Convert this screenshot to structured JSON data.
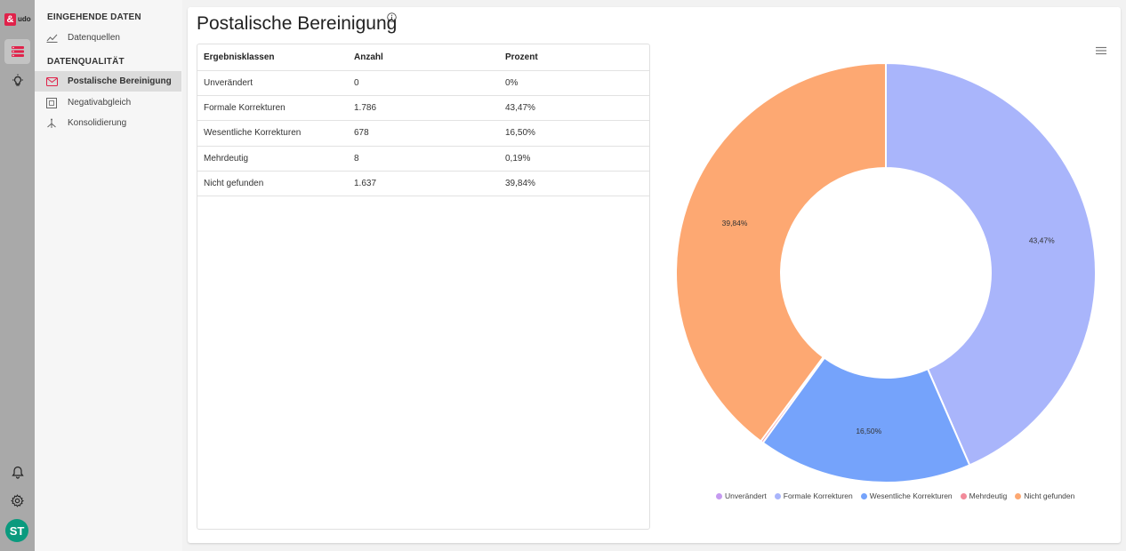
{
  "app": {
    "logo_mark": "&",
    "logo_text": "udo",
    "avatar_initials": "ST"
  },
  "rail": {
    "icons": [
      "database-icon",
      "lightbulb-icon",
      "bell-icon",
      "gear-icon"
    ]
  },
  "nav": {
    "section1_title": "EINGEHENDE DATEN",
    "section2_title": "DATENQUALITÄT",
    "items": [
      {
        "label": "Datenquellen",
        "icon": "chart-line-icon"
      },
      {
        "label": "Postalische Bereinigung",
        "icon": "envelope-icon"
      },
      {
        "label": "Negativabgleich",
        "icon": "grid-icon"
      },
      {
        "label": "Konsolidierung",
        "icon": "merge-icon"
      }
    ]
  },
  "main": {
    "title": "Postalische Bereinigung",
    "table": {
      "headers": [
        "Ergebnisklassen",
        "Anzahl",
        "Prozent"
      ],
      "rows": [
        [
          "Unverändert",
          "0",
          "0%"
        ],
        [
          "Formale Korrekturen",
          "1.786",
          "43,47%"
        ],
        [
          "Wesentliche Korrekturen",
          "678",
          "16,50%"
        ],
        [
          "Mehrdeutig",
          "8",
          "0,19%"
        ],
        [
          "Nicht gefunden",
          "1.637",
          "39,84%"
        ]
      ]
    }
  },
  "chart_data": {
    "type": "pie",
    "donut": true,
    "categories": [
      "Unverändert",
      "Formale Korrekturen",
      "Wesentliche Korrekturen",
      "Mehrdeutig",
      "Nicht gefunden"
    ],
    "values": [
      0,
      1786,
      678,
      8,
      1637
    ],
    "percent_labels": [
      "",
      "43,47%",
      "16,50%",
      "",
      "39,84%"
    ],
    "colors": [
      "#c59af0",
      "#a9b5fb",
      "#75a3fb",
      "#f28a9a",
      "#fda872"
    ],
    "legend_position": "bottom"
  }
}
